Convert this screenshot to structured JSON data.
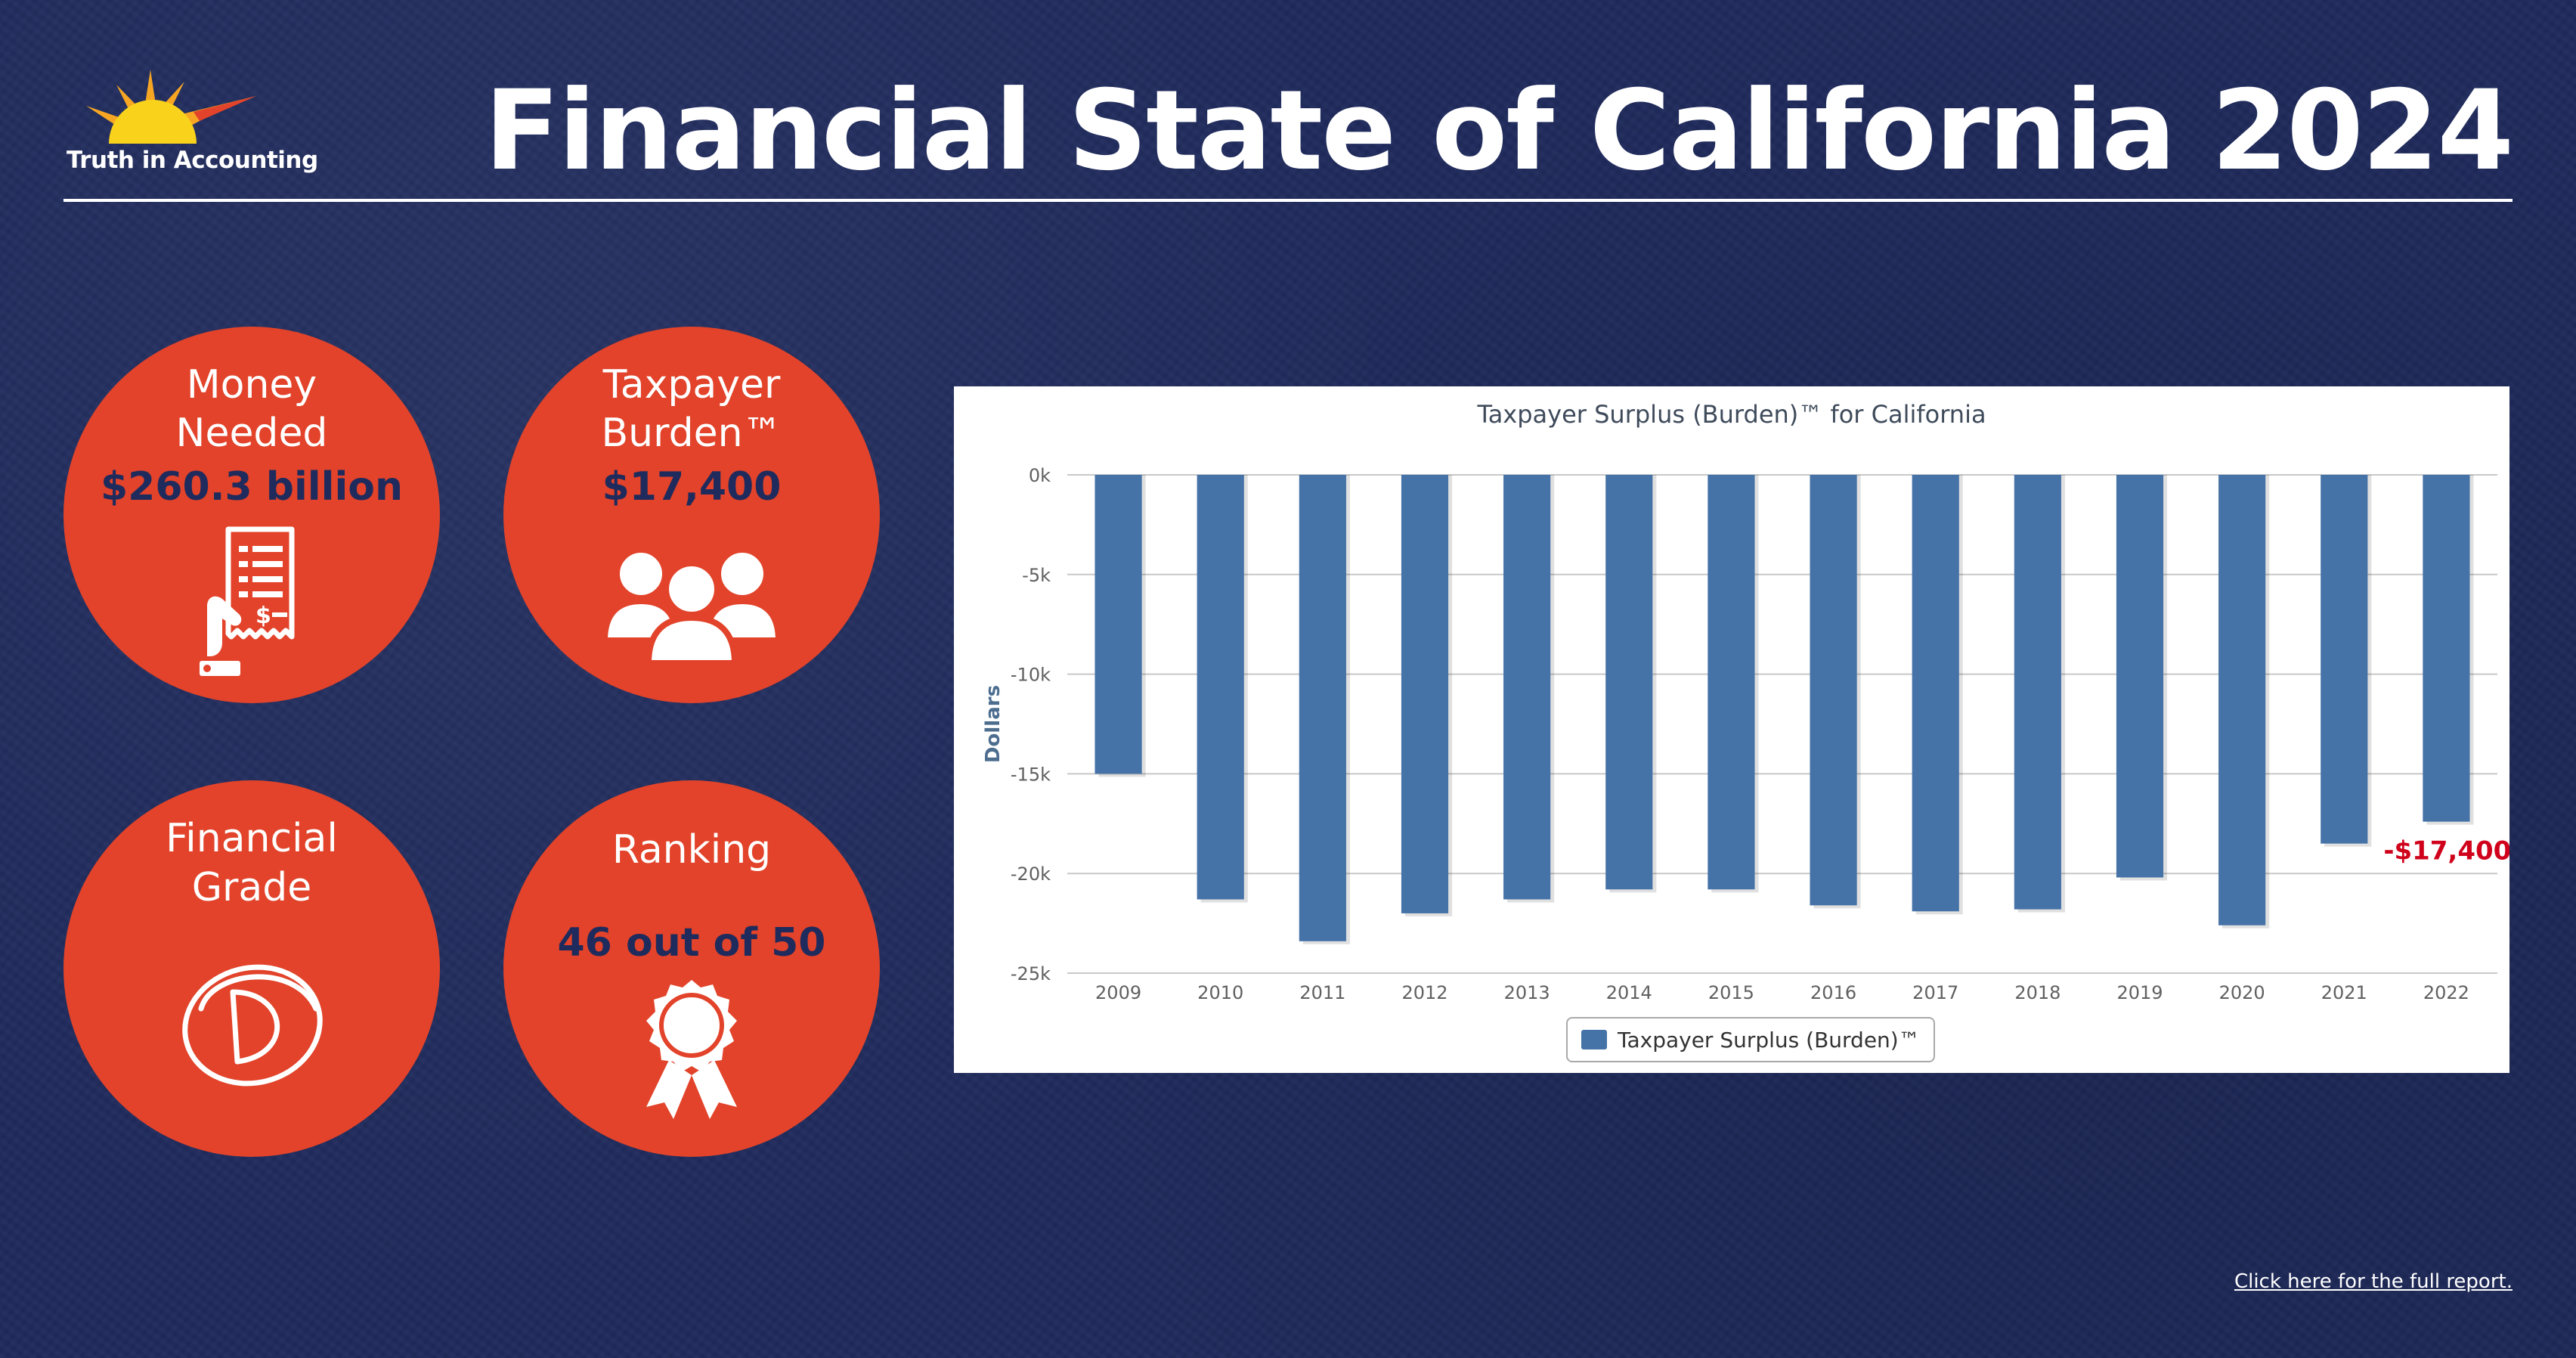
{
  "logo": {
    "text": "Truth in Accounting",
    "icon": "sunrise-logo-icon"
  },
  "title": "Financial State of California 2024",
  "cards": {
    "money_needed": {
      "label_line1": "Money",
      "label_line2": "Needed",
      "value": "$260.3 billion",
      "icon": "receipt-hand-icon"
    },
    "taxpayer_burden": {
      "label_line1": "Taxpayer",
      "label_line2": "Burden™",
      "value": "$17,400",
      "icon": "people-group-icon"
    },
    "financial_grade": {
      "label_line1": "Financial",
      "label_line2": "Grade",
      "icon": "grade-d-icon"
    },
    "ranking": {
      "label": "Ranking",
      "value": "46 out of 50",
      "icon": "award-ribbon-icon"
    }
  },
  "colors": {
    "background": "#1f2b5c",
    "circle": "#e2432a",
    "bar": "#4572a7",
    "highlight": "#d0021b"
  },
  "chart_data": {
    "type": "bar",
    "title": "Taxpayer Surplus (Burden)™ for California",
    "ylabel": "Dollars",
    "xlabel": "",
    "categories": [
      "2009",
      "2010",
      "2011",
      "2012",
      "2013",
      "2014",
      "2015",
      "2016",
      "2017",
      "2018",
      "2019",
      "2020",
      "2021",
      "2022"
    ],
    "series": [
      {
        "name": "Taxpayer Surplus (Burden)™",
        "values": [
          -15000,
          -21300,
          -23400,
          -22000,
          -21300,
          -20800,
          -20800,
          -21600,
          -21900,
          -21800,
          -20200,
          -22600,
          -18500,
          -17400
        ]
      }
    ],
    "ylim": [
      -25000,
      0
    ],
    "yticks": [
      0,
      -5000,
      -10000,
      -15000,
      -20000,
      -25000
    ],
    "ytick_labels": [
      "0k",
      "-5k",
      "-10k",
      "-15k",
      "-20k",
      "-25k"
    ],
    "grid": true,
    "legend": "bottom-center",
    "annotation": {
      "category": "2022",
      "text": "-$17,400"
    }
  },
  "footer": {
    "link": "Click here for the full report."
  }
}
